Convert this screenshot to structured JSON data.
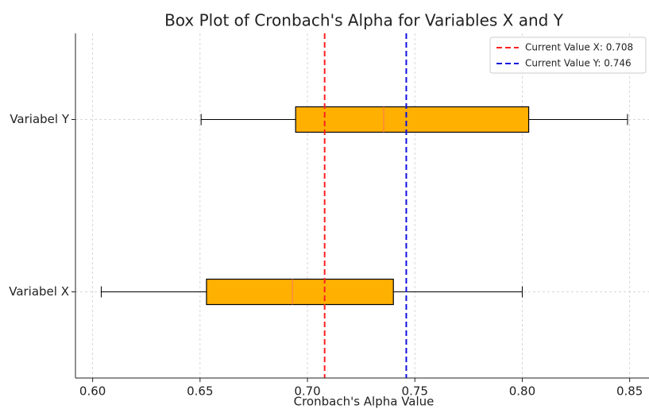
{
  "chart_data": {
    "type": "box",
    "title": "Box Plot of Cronbach's Alpha for Variables X and Y",
    "x_label": "Cronbach's Alpha Value",
    "categories": [
      "Variabel X",
      "Variabel Y"
    ],
    "whisker_low": [
      0.604,
      0.6505
    ],
    "q1": [
      0.653,
      0.6945
    ],
    "median": [
      0.693,
      0.7355
    ],
    "q3": [
      0.74,
      0.803
    ],
    "whisker_high": [
      0.8,
      0.849
    ],
    "box_color": "#ffb000",
    "median_color": "#ff7f50",
    "reference_lines": [
      {
        "name": "Current Value X: 0.708",
        "value": 0.708,
        "color": "#ff2020"
      },
      {
        "name": "Current Value Y: 0.746",
        "value": 0.746,
        "color": "#1010e0"
      }
    ],
    "xlim": [
      0.592,
      0.859
    ],
    "xticks": [
      {
        "value": 0.6,
        "label": "0.60"
      },
      0.65,
      {
        "value": 0.7,
        "label": "0.70"
      },
      0.75,
      {
        "value": 0.8,
        "label": "0.80"
      },
      0.85
    ],
    "grid": true,
    "legend_position": "upper right"
  }
}
